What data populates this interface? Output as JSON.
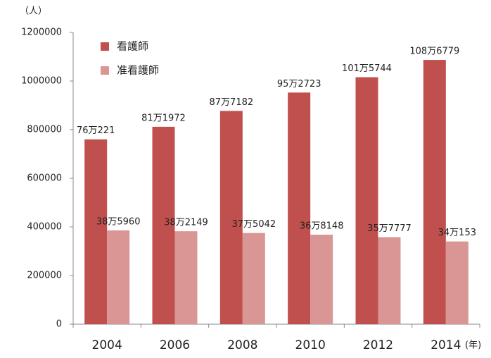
{
  "chart_data": {
    "type": "bar",
    "y_unit_label": "（人）",
    "x_unit_label": "(年)",
    "categories": [
      "2004",
      "2006",
      "2008",
      "2010",
      "2012",
      "2014"
    ],
    "series": [
      {
        "name": "看護師",
        "color": "#c0504d",
        "values": [
          760221,
          811972,
          877182,
          952723,
          1015744,
          1086779
        ],
        "value_labels": [
          "76万221",
          "81万1972",
          "87万7182",
          "95万2723",
          "101万5744",
          "108万6779"
        ]
      },
      {
        "name": "准看護師",
        "color": "#d99694",
        "values": [
          385960,
          382149,
          375042,
          368148,
          357777,
          340153
        ],
        "value_labels": [
          "38万5960",
          "38万2149",
          "37万5042",
          "36万8148",
          "35万7777",
          "34万153"
        ]
      }
    ],
    "ylim": [
      0,
      1200000
    ],
    "yticks": [
      0,
      200000,
      400000,
      600000,
      800000,
      1000000,
      1200000
    ],
    "grid": false,
    "legend": "top-left"
  }
}
